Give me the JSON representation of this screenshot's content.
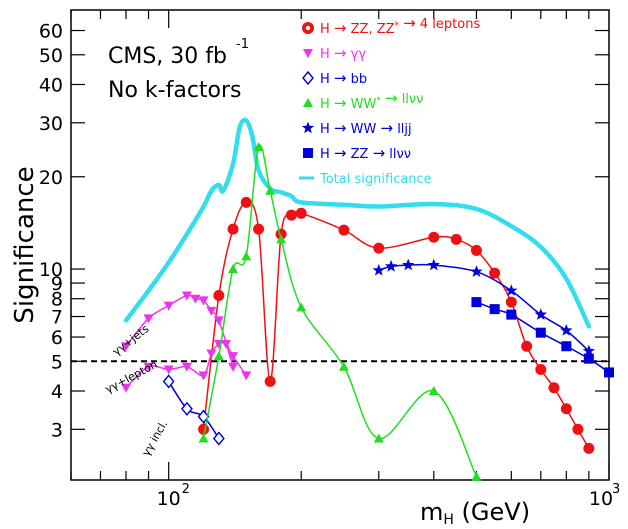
{
  "chart_data": {
    "type": "line",
    "xlabel": "m_H (GeV)",
    "xlabel_main": "m",
    "xlabel_sub": "H",
    "xlabel_unit": " (GeV)",
    "ylabel": "Significance",
    "x_scale": "log",
    "y_scale": "log",
    "xlim": [
      60,
      1000
    ],
    "ylim": [
      2.05,
      70
    ],
    "x_ticks": [
      {
        "v": 100,
        "label": "10",
        "exp": "2"
      },
      {
        "v": 1000,
        "label": "10",
        "exp": "3"
      }
    ],
    "y_ticks": [
      {
        "v": 3,
        "label": "3"
      },
      {
        "v": 4,
        "label": "4"
      },
      {
        "v": 5,
        "label": "5"
      },
      {
        "v": 6,
        "label": "6"
      },
      {
        "v": 7,
        "label": "7"
      },
      {
        "v": 8,
        "label": "8"
      },
      {
        "v": 9,
        "label": "9"
      },
      {
        "v": 10,
        "label": "10"
      },
      {
        "v": 20,
        "label": "20"
      },
      {
        "v": 30,
        "label": "30"
      },
      {
        "v": 40,
        "label": "40"
      },
      {
        "v": 50,
        "label": "50"
      },
      {
        "v": 60,
        "label": "60"
      }
    ],
    "title_line1": "CMS, 30 fb",
    "title_line1_exp": "-1",
    "title_line2": "No k-factors",
    "reference_line": {
      "y": 5,
      "style": "dashed",
      "color": "#000000"
    },
    "legend": [
      {
        "key": "zz4l",
        "marker": "circle",
        "color": "#ee1111",
        "parts": [
          "H ",
          "→",
          " ZZ, ZZ",
          "*",
          " ",
          "→",
          " 4 leptons"
        ]
      },
      {
        "key": "gg",
        "marker": "triangle-down",
        "color": "#ee33ee",
        "parts": [
          "H ",
          "→",
          " γγ"
        ]
      },
      {
        "key": "bb",
        "marker": "diamond",
        "color": "#0000dd",
        "parts": [
          "H ",
          "→",
          " bb"
        ]
      },
      {
        "key": "ww2l",
        "marker": "triangle-up",
        "color": "#22dd22",
        "parts": [
          "H ",
          "→",
          " WW",
          "*",
          " ",
          "→",
          " llνν"
        ]
      },
      {
        "key": "wwlljj",
        "marker": "star",
        "color": "#0000dd",
        "parts": [
          "H ",
          "→",
          " WW ",
          "→",
          " lljj"
        ]
      },
      {
        "key": "zzllvv",
        "marker": "square",
        "color": "#0000dd",
        "parts": [
          "H ",
          "→",
          " ZZ ",
          "→",
          " llνν"
        ]
      },
      {
        "key": "total",
        "marker": "dash",
        "color": "#33ddee",
        "parts": [
          "Total significance"
        ]
      }
    ],
    "annotations": [
      "γγ+jets",
      "γγ+lepton",
      "γγ incl."
    ],
    "series": [
      {
        "name": "Total significance",
        "color": "#33ddee",
        "width": 4.5,
        "marker": "none",
        "x": [
          80,
          90,
          100,
          110,
          120,
          125,
          130,
          133,
          140,
          145,
          150,
          155,
          160,
          170,
          180,
          190,
          200,
          250,
          300,
          400,
          500,
          600,
          700,
          800,
          900
        ],
        "y": [
          6.8,
          8.5,
          10.5,
          13,
          16,
          18,
          18.8,
          18,
          22,
          29,
          30.5,
          27,
          21,
          18.3,
          17.8,
          17.3,
          16.5,
          16.2,
          16,
          16.3,
          15.7,
          13.8,
          11.8,
          9.3,
          6.5
        ]
      },
      {
        "name": "H → ZZ, ZZ* → 4 leptons",
        "color": "#ee1111",
        "width": 1.5,
        "marker": "circle",
        "x": [
          120,
          130,
          140,
          150,
          160,
          170,
          180,
          190,
          200,
          250,
          300,
          400,
          450,
          500,
          550,
          600,
          650,
          700,
          750,
          800,
          850,
          900
        ],
        "y": [
          3,
          8.2,
          13.5,
          16.5,
          13.5,
          4.3,
          13,
          15,
          15.2,
          13.4,
          11.7,
          12.7,
          12.5,
          11.5,
          9.7,
          7.8,
          5.6,
          4.7,
          4.1,
          3.5,
          3.0,
          2.6
        ]
      },
      {
        "name": "H → γγ (γγ+jets)",
        "color": "#ee33ee",
        "width": 1.5,
        "marker": "triangle-down",
        "x": [
          80,
          90,
          100,
          110,
          115,
          120,
          125,
          130,
          140
        ],
        "y": [
          5.6,
          6.9,
          7.6,
          8.2,
          8,
          7.9,
          7.3,
          6.8,
          4.8
        ]
      },
      {
        "name": "H → γγ (γγ+lepton)",
        "color": "#ee33ee",
        "width": 1.5,
        "marker": "triangle-down",
        "x": [
          80,
          90,
          100,
          110,
          120,
          125,
          130,
          135,
          140,
          150
        ],
        "y": [
          4.1,
          4.8,
          4.7,
          4.8,
          4.5,
          5.3,
          5.7,
          5.7,
          5.2,
          4.5
        ]
      },
      {
        "name": "H → bb",
        "color": "#0000dd",
        "width": 1.5,
        "marker": "diamond",
        "x": [
          100,
          110,
          120,
          130
        ],
        "y": [
          4.3,
          3.5,
          3.3,
          2.8
        ]
      },
      {
        "name": "H → WW* → llνν",
        "color": "#22dd22",
        "width": 1.5,
        "marker": "triangle-up",
        "x": [
          120,
          130,
          140,
          150,
          160,
          170,
          180,
          200,
          250,
          300,
          400,
          500
        ],
        "y": [
          2.8,
          5.2,
          10,
          11,
          25,
          18,
          12.5,
          7.5,
          4.8,
          2.8,
          4,
          2.1
        ]
      },
      {
        "name": "H → WW → lljj",
        "color": "#0000dd",
        "width": 1.5,
        "marker": "star",
        "x": [
          300,
          320,
          350,
          400,
          500,
          600,
          700,
          800,
          900
        ],
        "y": [
          9.9,
          10.2,
          10.3,
          10.3,
          9.8,
          8.5,
          7.1,
          6.3,
          5.4
        ]
      },
      {
        "name": "H → ZZ → llνν",
        "color": "#0000dd",
        "width": 1.5,
        "marker": "square",
        "x": [
          500,
          550,
          600,
          700,
          800,
          900,
          1000
        ],
        "y": [
          7.8,
          7.4,
          7.1,
          6.2,
          5.6,
          5.1,
          4.6
        ]
      }
    ]
  }
}
